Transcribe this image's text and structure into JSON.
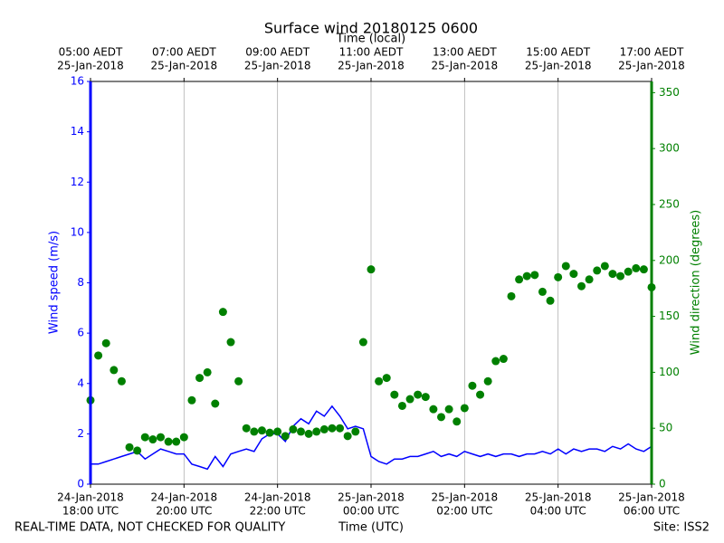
{
  "chart_data": {
    "type": "line-scatter",
    "title": "Surface wind 20180125 0600",
    "xlabel": "Time (UTC)",
    "x2label": "Time (local)",
    "ylabel": "Wind speed (m/s)",
    "y2label": "Wind direction (degrees)",
    "footer_left": "REAL-TIME DATA, NOT CHECKED FOR QUALITY",
    "footer_right": "Site: ISS2",
    "x": [
      "2018-01-24T18:00",
      "2018-01-24T18:10",
      "2018-01-24T18:20",
      "2018-01-24T18:30",
      "2018-01-24T18:40",
      "2018-01-24T18:50",
      "2018-01-24T19:00",
      "2018-01-24T19:10",
      "2018-01-24T19:20",
      "2018-01-24T19:30",
      "2018-01-24T19:40",
      "2018-01-24T19:50",
      "2018-01-24T20:00",
      "2018-01-24T20:10",
      "2018-01-24T20:20",
      "2018-01-24T20:30",
      "2018-01-24T20:40",
      "2018-01-24T20:50",
      "2018-01-24T21:00",
      "2018-01-24T21:10",
      "2018-01-24T21:20",
      "2018-01-24T21:30",
      "2018-01-24T21:40",
      "2018-01-24T21:50",
      "2018-01-24T22:00",
      "2018-01-24T22:10",
      "2018-01-24T22:20",
      "2018-01-24T22:30",
      "2018-01-24T22:40",
      "2018-01-24T22:50",
      "2018-01-24T23:00",
      "2018-01-24T23:10",
      "2018-01-24T23:20",
      "2018-01-24T23:30",
      "2018-01-24T23:40",
      "2018-01-24T23:50",
      "2018-01-25T00:00",
      "2018-01-25T00:10",
      "2018-01-25T00:20",
      "2018-01-25T00:30",
      "2018-01-25T00:40",
      "2018-01-25T00:50",
      "2018-01-25T01:00",
      "2018-01-25T01:10",
      "2018-01-25T01:20",
      "2018-01-25T01:30",
      "2018-01-25T01:40",
      "2018-01-25T01:50",
      "2018-01-25T02:00",
      "2018-01-25T02:10",
      "2018-01-25T02:20",
      "2018-01-25T02:30",
      "2018-01-25T02:40",
      "2018-01-25T02:50",
      "2018-01-25T03:00",
      "2018-01-25T03:10",
      "2018-01-25T03:20",
      "2018-01-25T03:30",
      "2018-01-25T03:40",
      "2018-01-25T03:50",
      "2018-01-25T04:00",
      "2018-01-25T04:10",
      "2018-01-25T04:20",
      "2018-01-25T04:30",
      "2018-01-25T04:40",
      "2018-01-25T04:50",
      "2018-01-25T05:00",
      "2018-01-25T05:10",
      "2018-01-25T05:20",
      "2018-01-25T05:30",
      "2018-01-25T05:40",
      "2018-01-25T05:50",
      "2018-01-25T06:00"
    ],
    "series": [
      {
        "name": "Wind speed (m/s)",
        "color": "blue",
        "kind": "line",
        "values": [
          0.8,
          0.8,
          0.9,
          1.0,
          1.1,
          1.2,
          1.3,
          1.0,
          1.2,
          1.4,
          1.3,
          1.2,
          1.2,
          0.8,
          0.7,
          0.6,
          1.1,
          0.7,
          1.2,
          1.3,
          1.4,
          1.3,
          1.8,
          2.0,
          2.0,
          1.7,
          2.3,
          2.6,
          2.4,
          2.9,
          2.7,
          3.1,
          2.7,
          2.2,
          2.3,
          2.2,
          1.1,
          0.9,
          0.8,
          1.0,
          1.0,
          1.1,
          1.1,
          1.2,
          1.3,
          1.1,
          1.2,
          1.1,
          1.3,
          1.2,
          1.1,
          1.2,
          1.1,
          1.2,
          1.2,
          1.1,
          1.2,
          1.2,
          1.3,
          1.2,
          1.4,
          1.2,
          1.4,
          1.3,
          1.4,
          1.4,
          1.3,
          1.5,
          1.4,
          1.6,
          1.4,
          1.3,
          1.5
        ]
      },
      {
        "name": "Wind direction (degrees)",
        "color": "green",
        "kind": "scatter",
        "axis": "y2",
        "values": [
          75,
          115,
          126,
          102,
          92,
          33,
          30,
          42,
          40,
          42,
          38,
          38,
          42,
          75,
          95,
          100,
          72,
          154,
          127,
          92,
          50,
          47,
          48,
          46,
          47,
          43,
          49,
          47,
          45,
          47,
          49,
          50,
          50,
          43,
          47,
          127,
          192,
          92,
          95,
          80,
          70,
          76,
          80,
          78,
          67,
          60,
          67,
          56,
          68,
          88,
          80,
          92,
          110,
          112,
          168,
          183,
          186,
          187,
          172,
          164,
          185,
          195,
          188,
          177,
          183,
          191,
          195,
          188,
          186,
          190,
          193,
          192,
          176
        ]
      }
    ],
    "xlim": [
      "2018-01-24T18:00",
      "2018-01-25T06:00"
    ],
    "xticks": [
      {
        "value": "2018-01-24T18:00",
        "label": [
          "24-Jan-2018",
          "18:00 UTC"
        ]
      },
      {
        "value": "2018-01-24T20:00",
        "label": [
          "24-Jan-2018",
          "20:00 UTC"
        ]
      },
      {
        "value": "2018-01-24T22:00",
        "label": [
          "24-Jan-2018",
          "22:00 UTC"
        ]
      },
      {
        "value": "2018-01-25T00:00",
        "label": [
          "25-Jan-2018",
          "00:00 UTC"
        ]
      },
      {
        "value": "2018-01-25T02:00",
        "label": [
          "25-Jan-2018",
          "02:00 UTC"
        ]
      },
      {
        "value": "2018-01-25T04:00",
        "label": [
          "25-Jan-2018",
          "04:00 UTC"
        ]
      },
      {
        "value": "2018-01-25T06:00",
        "label": [
          "25-Jan-2018",
          "06:00 UTC"
        ]
      }
    ],
    "x2ticks": [
      {
        "value": "2018-01-24T18:00",
        "label": [
          "05:00 AEDT",
          "25-Jan-2018"
        ]
      },
      {
        "value": "2018-01-24T20:00",
        "label": [
          "07:00 AEDT",
          "25-Jan-2018"
        ]
      },
      {
        "value": "2018-01-24T22:00",
        "label": [
          "09:00 AEDT",
          "25-Jan-2018"
        ]
      },
      {
        "value": "2018-01-25T00:00",
        "label": [
          "11:00 AEDT",
          "25-Jan-2018"
        ]
      },
      {
        "value": "2018-01-25T02:00",
        "label": [
          "13:00 AEDT",
          "25-Jan-2018"
        ]
      },
      {
        "value": "2018-01-25T04:00",
        "label": [
          "15:00 AEDT",
          "25-Jan-2018"
        ]
      },
      {
        "value": "2018-01-25T06:00",
        "label": [
          "17:00 AEDT",
          "25-Jan-2018"
        ]
      }
    ],
    "ylim": [
      0,
      16
    ],
    "yticks": [
      0,
      2,
      4,
      6,
      8,
      10,
      12,
      14,
      16
    ],
    "y2lim": [
      0,
      360
    ],
    "y2ticks": [
      0,
      50,
      100,
      150,
      200,
      250,
      300,
      350
    ],
    "grid": "x"
  }
}
